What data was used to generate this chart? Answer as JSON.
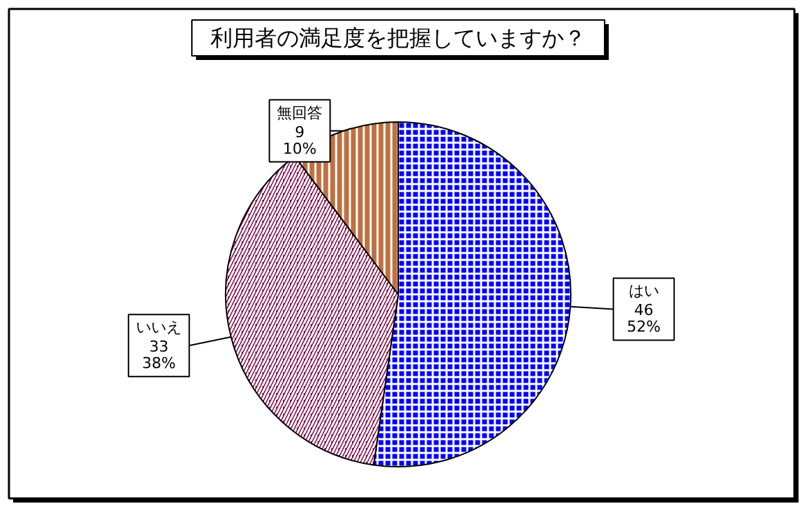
{
  "chart_data": {
    "type": "pie",
    "title": "利用者の満足度を把握していますか？",
    "categories": [
      "はい",
      "いいえ",
      "無回答"
    ],
    "values": [
      46,
      33,
      9
    ],
    "colors": [
      "#0000ff",
      "#800040",
      "#c07040"
    ],
    "value_labels": [
      "46\n52%",
      "33\n38%",
      "9\n10%"
    ]
  }
}
